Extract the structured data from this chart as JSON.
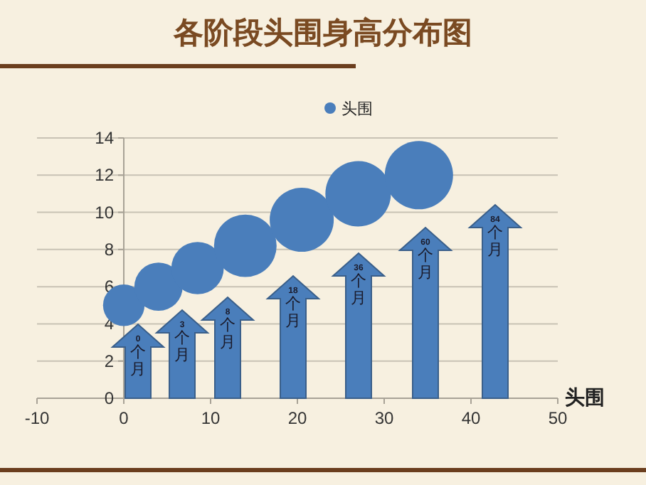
{
  "chart_data": {
    "type": "bubble",
    "title": "各阶段头围身高分布图",
    "xlabel": "头围",
    "x": [
      0,
      4,
      8.5,
      14,
      20.5,
      27,
      34
    ],
    "series": [
      {
        "name": "头围",
        "color": "#4a7ebb",
        "values": [
          5,
          6,
          7,
          8.2,
          9.6,
          11,
          12
        ],
        "sizes": [
          0.37,
          0.5,
          0.59,
          0.84,
          0.88,
          0.92,
          1
        ]
      }
    ],
    "xlim": [
      -10,
      50
    ],
    "xticks": [
      -10,
      0,
      10,
      20,
      30,
      40,
      50
    ],
    "ylim": [
      0,
      14
    ],
    "yticks": [
      0,
      2,
      4,
      6,
      8,
      10,
      12,
      14
    ],
    "grid": "y",
    "legend": "top",
    "annotations": [
      "0个月",
      "3个月",
      "8个月",
      "18个月",
      "36个月",
      "60个月",
      "84个月"
    ]
  }
}
